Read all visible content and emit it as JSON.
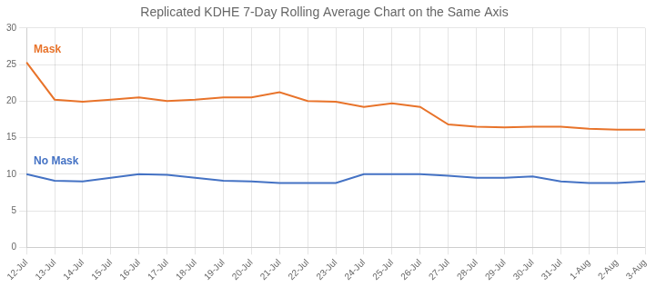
{
  "chart_data": {
    "type": "line",
    "title": "Replicated KDHE 7-Day Rolling Average Chart on the Same Axis",
    "categories": [
      "12-Jul",
      "13-Jul",
      "14-Jul",
      "15-Jul",
      "16-Jul",
      "17-Jul",
      "18-Jul",
      "19-Jul",
      "20-Jul",
      "21-Jul",
      "22-Jul",
      "23-Jul",
      "24-Jul",
      "25-Jul",
      "26-Jul",
      "27-Jul",
      "28-Jul",
      "29-Jul",
      "30-Jul",
      "31-Jul",
      "1-Aug",
      "2-Aug",
      "3-Aug"
    ],
    "series": [
      {
        "name": "Mask",
        "color": "#E8732A",
        "values": [
          25.3,
          20.2,
          19.9,
          20.2,
          20.5,
          20.0,
          20.2,
          20.5,
          20.5,
          21.2,
          20.0,
          19.9,
          19.2,
          19.7,
          19.2,
          16.8,
          16.5,
          16.4,
          16.5,
          16.5,
          16.2,
          16.1,
          16.1
        ]
      },
      {
        "name": "No Mask",
        "color": "#4472C4",
        "values": [
          10.0,
          9.1,
          9.0,
          9.5,
          10.0,
          9.9,
          9.5,
          9.1,
          9.0,
          8.8,
          8.8,
          8.8,
          10.0,
          10.0,
          10.0,
          9.8,
          9.5,
          9.5,
          9.7,
          9.0,
          8.8,
          8.8,
          9.0
        ]
      }
    ],
    "ylim": [
      0,
      30
    ],
    "yticks": [
      0,
      5,
      10,
      15,
      20,
      25,
      30
    ],
    "grid": true
  }
}
